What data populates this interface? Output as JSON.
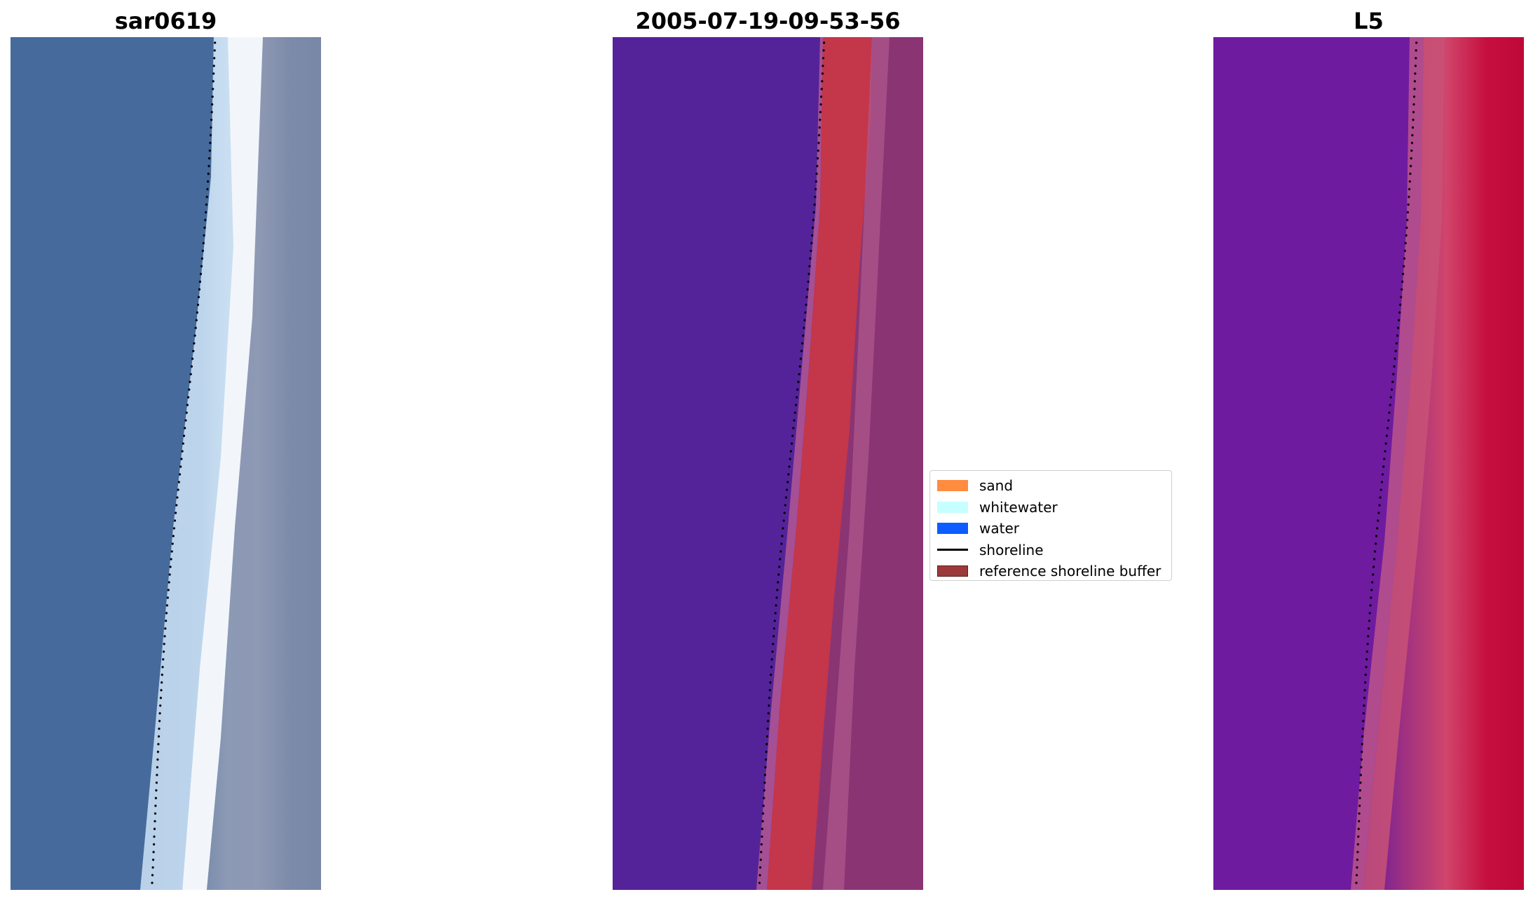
{
  "titles": {
    "left": "sar0619",
    "center": "2005-07-19-09-53-56",
    "right": "L5"
  },
  "legend": {
    "items": [
      {
        "label": "sand",
        "color": "#ff8c3f",
        "kind": "patch"
      },
      {
        "label": "whitewater",
        "color": "#c6ffff",
        "kind": "patch"
      },
      {
        "label": "water",
        "color": "#0d5cff",
        "kind": "patch"
      },
      {
        "label": "shoreline",
        "color": "#000000",
        "kind": "line"
      },
      {
        "label": "reference shoreline buffer",
        "color": "#9a3a3a",
        "kind": "patch"
      }
    ]
  },
  "colors": {
    "left_water": "#4a6b9c",
    "left_whitewater": "#eef6ff",
    "center_water": "#552399",
    "center_buffer": "#c4364a",
    "center_land": "#8a3474",
    "right_water": "#6e1ba0",
    "right_land": "#c10a3a",
    "shoreline_dots": "#000000"
  }
}
